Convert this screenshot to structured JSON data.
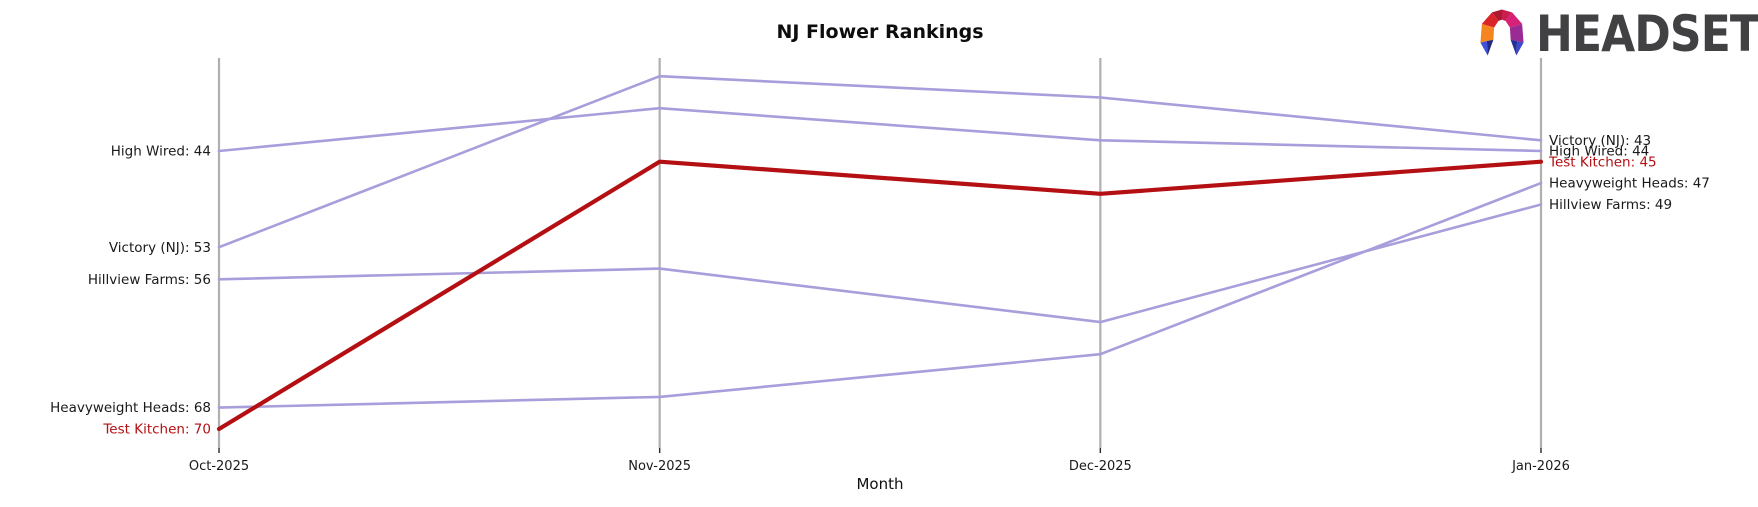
{
  "header": {
    "title": "NJ Flower Rankings"
  },
  "logo": {
    "brand_text": "HEADSET",
    "palette": {
      "orange": "#F6851F",
      "red": "#D92428",
      "crimson": "#AD1931",
      "raspberry": "#C91E4E",
      "magenta": "#D72077",
      "purple": "#9A2B95",
      "blue_light": "#4152D9",
      "navy": "#222980",
      "indigo_dark": "#272E96",
      "indigo": "#3C49CF",
      "text": "#414042"
    }
  },
  "chart_data": {
    "type": "line",
    "subtype": "bump-ranking-parallel-axes",
    "title": "NJ Flower Rankings",
    "xlabel": "Month",
    "x": [
      "Oct-2025",
      "Nov-2025",
      "Dec-2025",
      "Jan-2026"
    ],
    "y_inverted": true,
    "ylim": [
      34,
      72
    ],
    "grid": "vertical month axis lines only",
    "legend": "inline start/end labels",
    "series": [
      {
        "name": "High Wired",
        "values": [
          44,
          40,
          43,
          44
        ],
        "color": "#A89EDB",
        "highlighted": false,
        "start_label": "High Wired: 44",
        "end_label": "High Wired: 44"
      },
      {
        "name": "Victory (NJ)",
        "values": [
          53,
          37,
          39,
          43
        ],
        "color": "#A89EDB",
        "highlighted": false,
        "start_label": "Victory (NJ): 53",
        "end_label": "Victory (NJ): 43"
      },
      {
        "name": "Hillview Farms",
        "values": [
          56,
          55,
          60,
          49
        ],
        "color": "#A89EDB",
        "highlighted": false,
        "start_label": "Hillview Farms: 56",
        "end_label": "Hillview Farms: 49"
      },
      {
        "name": "Heavyweight Heads",
        "values": [
          68,
          67,
          63,
          47
        ],
        "color": "#A89EDB",
        "highlighted": false,
        "start_label": "Heavyweight Heads: 68",
        "end_label": "Heavyweight Heads: 47"
      },
      {
        "name": "Test Kitchen",
        "values": [
          70,
          45,
          48,
          45
        ],
        "color": "#B40F12",
        "highlighted": true,
        "start_label": "Test Kitchen: 70",
        "end_label": "Test Kitchen: 45"
      }
    ]
  },
  "colors": {
    "background": "#FFFFFF",
    "axis_line": "#B0B0B0",
    "tick": "#262626",
    "text": "#1A1A1A",
    "line_purple": "#A89EDB",
    "line_red": "#B40F12"
  }
}
